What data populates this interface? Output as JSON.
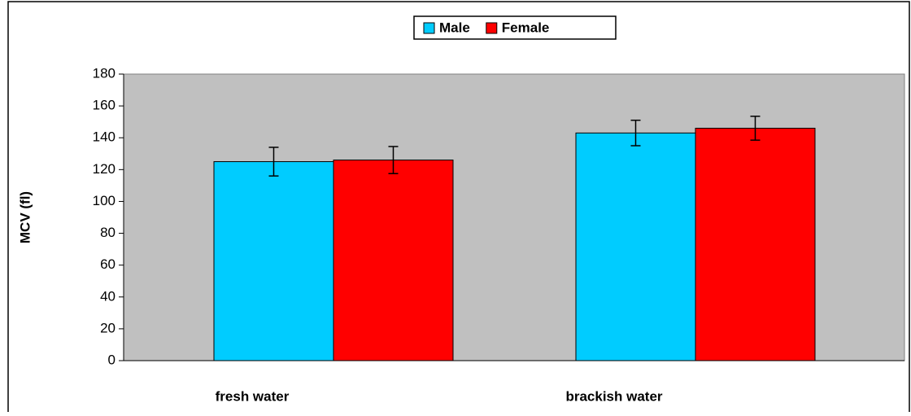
{
  "chart_data": {
    "type": "bar",
    "y_label": "MCV (fl)",
    "categories": [
      "fresh water",
      "brackish water"
    ],
    "series": [
      {
        "name": "Male",
        "color": "#00ccff",
        "values": [
          125,
          143
        ],
        "errors": [
          9,
          8
        ]
      },
      {
        "name": "Female",
        "color": "#ff0000",
        "values": [
          126,
          146
        ],
        "errors": [
          8.5,
          7.5
        ]
      }
    ],
    "ylim": [
      0,
      180
    ],
    "yticks": [
      0,
      20,
      40,
      60,
      80,
      100,
      120,
      140,
      160,
      180
    ],
    "plot_background": "#c0c0c0",
    "legend": "top"
  }
}
